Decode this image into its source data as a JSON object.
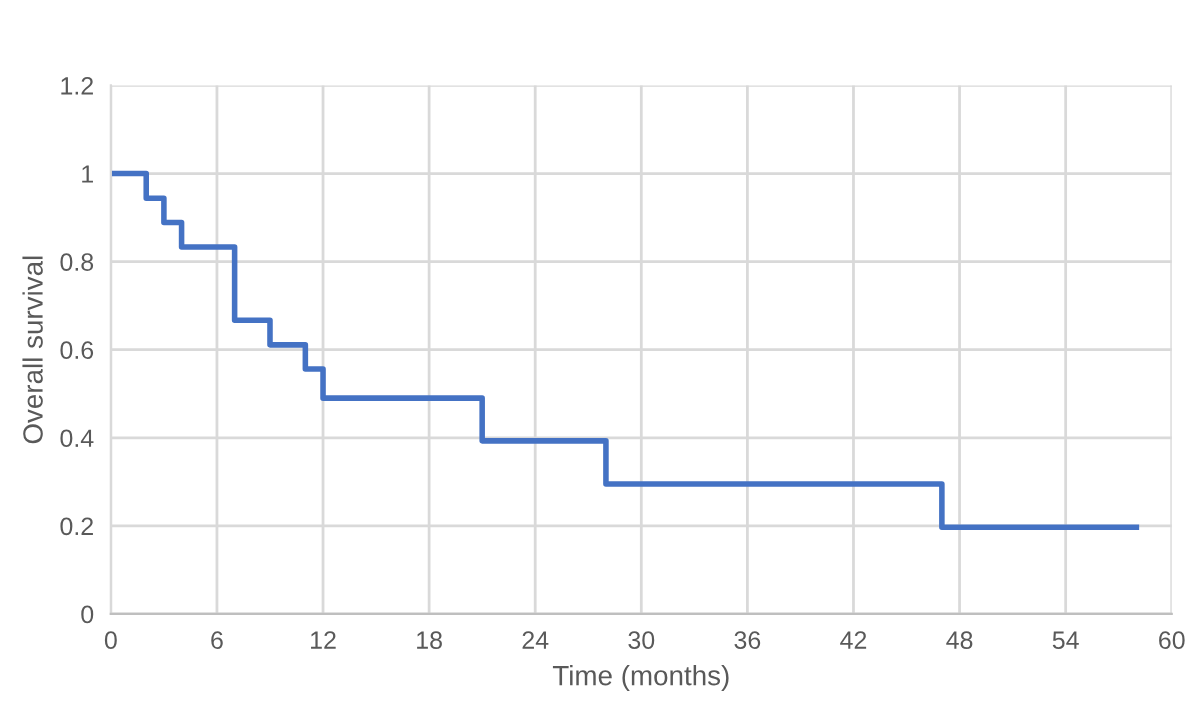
{
  "chart_data": {
    "type": "step",
    "xlabel": "Time (months)",
    "ylabel": "Overall survival",
    "x": [
      0,
      2,
      3,
      4,
      7,
      9,
      11,
      12,
      21,
      28,
      47,
      58
    ],
    "series": [
      {
        "color": "#4472c4",
        "values": [
          1,
          0.944,
          0.889,
          0.833,
          0.667,
          0.611,
          0.556,
          0.49,
          0.393,
          0.295,
          0.197,
          0.197
        ]
      }
    ],
    "xlim": [
      0,
      60
    ],
    "xticks": [
      0,
      6,
      12,
      18,
      24,
      30,
      36,
      42,
      48,
      54,
      60
    ],
    "ylim": [
      0,
      1.2
    ],
    "yticks": [
      0,
      {
        "value": 0.2,
        "label": "0.2"
      },
      {
        "value": 0.4,
        "label": "0.4"
      },
      {
        "value": 0.6,
        "label": "0.6"
      },
      {
        "value": 0.8,
        "label": "0.8"
      },
      1,
      {
        "value": 1.2,
        "label": "1.2"
      }
    ],
    "grid": true,
    "marker": "none",
    "line_style": "solid"
  }
}
